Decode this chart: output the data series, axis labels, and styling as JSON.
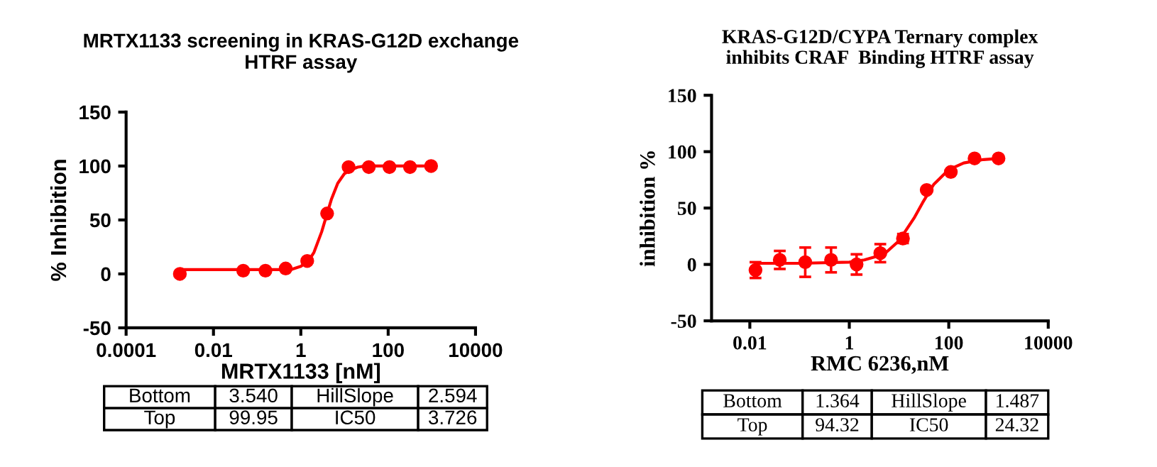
{
  "chart_data": [
    {
      "type": "scatter",
      "title": "MRTX1133 screening in KRAS-G12D exchange\nHTRF assay",
      "xlabel": "MRTX1133 [nM]",
      "ylabel": "% Inhibition",
      "log": "x",
      "xlim": [
        0.0001,
        10000
      ],
      "xticks": [
        0.0001,
        0.01,
        1,
        100,
        10000
      ],
      "ylim": [
        -50,
        150
      ],
      "yticks": [
        -50,
        0,
        50,
        100,
        150
      ],
      "grid": false,
      "legend": false,
      "marker": "circle",
      "series": [
        {
          "color": "#ff0000",
          "x": [
            0.0017,
            0.048,
            0.155,
            0.45,
            1.4,
            4,
            12.4,
            36,
            107,
            316,
            960
          ],
          "values": [
            0,
            3,
            3,
            5,
            12,
            56,
            99,
            99,
            99,
            99,
            100
          ]
        },
        {
          "type": "line",
          "color": "#ff0000",
          "marker": "none",
          "x": [
            0.0017,
            0.01,
            0.1,
            0.3,
            0.6,
            1,
            1.5,
            2,
            3,
            4,
            5,
            7,
            10,
            15,
            20,
            30,
            100,
            960
          ],
          "values": [
            4,
            4,
            4,
            4,
            4,
            7,
            12,
            20,
            39,
            56,
            69,
            84,
            93,
            97,
            99,
            100,
            100,
            100
          ]
        }
      ],
      "annotations": [
        "Bottom",
        "3.540",
        "HillSlope",
        "2.594",
        "Top",
        "99.95",
        "IC50",
        "3.726"
      ]
    },
    {
      "type": "scatter",
      "title": "KRAS-G12D/CYPA Ternary complex\ninhibits CRAF  Binding HTRF assay",
      "xlabel": "RMC 6236,nM",
      "ylabel": "inhibition %",
      "log": "x",
      "xlim": [
        0.0017,
        10000
      ],
      "xticks": [
        0.01,
        1,
        100,
        10000
      ],
      "ylim": [
        -50,
        150
      ],
      "yticks": [
        -50,
        0,
        50,
        100,
        150
      ],
      "grid": false,
      "legend": false,
      "marker": "circle",
      "series": [
        {
          "color": "#ff0000",
          "x": [
            0.013,
            0.04,
            0.13,
            0.43,
            1.4,
            4.2,
            12,
            36,
            110,
            330,
            1000
          ],
          "values": [
            -5,
            4,
            2,
            4,
            0,
            10,
            23,
            66,
            82,
            94,
            94
          ],
          "errors": [
            7,
            8,
            13,
            11,
            9,
            8,
            4,
            null,
            null,
            null,
            null
          ]
        },
        {
          "type": "line",
          "color": "#ff0000",
          "marker": "none",
          "x": [
            0.013,
            0.1,
            1,
            2,
            5,
            10,
            20,
            30,
            50,
            100,
            200,
            500,
            1000
          ],
          "values": [
            1,
            1,
            2,
            4,
            9,
            21,
            41,
            55,
            71,
            84,
            90,
            93,
            94
          ]
        }
      ],
      "annotations": [
        "Bottom",
        "1.364",
        "HillSlope",
        "1.487",
        "Top",
        "94.32",
        "IC50",
        "24.32"
      ]
    }
  ]
}
